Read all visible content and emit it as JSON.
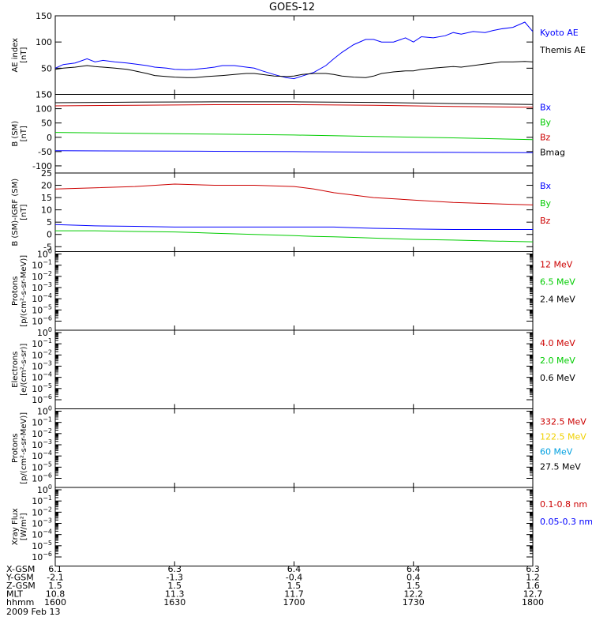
{
  "title": "GOES-12",
  "date_label": "2009 Feb 13",
  "chart_data": [
    {
      "type": "line",
      "id": "ae",
      "ylabel": [
        "AE index",
        "[nT]"
      ],
      "yscale": "linear",
      "ylim": [
        0,
        150
      ],
      "yticks": [
        0,
        50,
        100,
        150
      ],
      "x": [
        1600,
        1602,
        1605,
        1608,
        1610,
        1612,
        1615,
        1618,
        1620,
        1623,
        1625,
        1628,
        1630,
        1633,
        1635,
        1638,
        1640,
        1642,
        1645,
        1648,
        1650,
        1652,
        1655,
        1658,
        1700,
        1702,
        1705,
        1708,
        1710,
        1712,
        1715,
        1718,
        1720,
        1722,
        1725,
        1728,
        1730,
        1732,
        1735,
        1738,
        1740,
        1742,
        1745,
        1748,
        1750,
        1752,
        1755,
        1758,
        1800
      ],
      "series": [
        {
          "name": "Kyoto AE",
          "color": "#0000ff",
          "values": [
            50,
            57,
            60,
            68,
            62,
            65,
            62,
            60,
            58,
            55,
            52,
            50,
            48,
            47,
            48,
            50,
            52,
            55,
            55,
            52,
            50,
            45,
            38,
            32,
            30,
            35,
            42,
            55,
            68,
            80,
            95,
            105,
            105,
            100,
            100,
            108,
            100,
            110,
            108,
            112,
            118,
            115,
            120,
            118,
            122,
            125,
            128,
            138,
            120
          ]
        },
        {
          "name": "Themis AE",
          "color": "#000000",
          "values": [
            48,
            50,
            52,
            55,
            53,
            52,
            50,
            48,
            45,
            40,
            36,
            34,
            33,
            32,
            32,
            34,
            35,
            36,
            38,
            40,
            40,
            38,
            35,
            34,
            35,
            38,
            40,
            40,
            38,
            35,
            33,
            32,
            35,
            40,
            43,
            45,
            45,
            48,
            50,
            52,
            53,
            52,
            55,
            58,
            60,
            62,
            62,
            63,
            62
          ]
        }
      ]
    },
    {
      "type": "line",
      "id": "b_sm",
      "ylabel": [
        "B (SM)",
        "[nT]"
      ],
      "yscale": "linear",
      "ylim": [
        -125,
        150
      ],
      "yticks": [
        -100,
        -50,
        0,
        50,
        100,
        150
      ],
      "x": [
        1600,
        1620,
        1640,
        1700,
        1720,
        1740,
        1800
      ],
      "series": [
        {
          "name": "Bx",
          "color": "#0000ff",
          "values": [
            -47,
            -48,
            -49,
            -50,
            -52,
            -53,
            -54
          ]
        },
        {
          "name": "By",
          "color": "#00cc00",
          "values": [
            17,
            14,
            11,
            8,
            3,
            -2,
            -8
          ]
        },
        {
          "name": "Bz",
          "color": "#cc0000",
          "values": [
            110,
            112,
            114,
            114,
            112,
            108,
            105
          ]
        },
        {
          "name": "Bmag",
          "color": "#000000",
          "values": [
            121,
            123,
            124,
            124,
            122,
            118,
            115
          ]
        }
      ]
    },
    {
      "type": "line",
      "id": "b_igrf",
      "ylabel": [
        "B (SM)-IGRF (SM)",
        "[nT]"
      ],
      "yscale": "linear",
      "ylim": [
        -7,
        25
      ],
      "yticks": [
        -5,
        0,
        5,
        10,
        15,
        20,
        25
      ],
      "x": [
        1600,
        1610,
        1620,
        1630,
        1640,
        1650,
        1700,
        1705,
        1710,
        1715,
        1720,
        1730,
        1740,
        1750,
        1800
      ],
      "series": [
        {
          "name": "Bx",
          "color": "#0000ff",
          "values": [
            4,
            3.5,
            3.3,
            3,
            3,
            3,
            3,
            3,
            3,
            2.7,
            2.5,
            2.2,
            2,
            2,
            2
          ]
        },
        {
          "name": "By",
          "color": "#00cc00",
          "values": [
            1.5,
            1.5,
            1.2,
            1,
            0.5,
            0,
            -0.5,
            -0.8,
            -1,
            -1.2,
            -1.5,
            -2,
            -2.3,
            -2.7,
            -3
          ]
        },
        {
          "name": "Bz",
          "color": "#cc0000",
          "values": [
            18.5,
            19,
            19.5,
            20.5,
            20,
            20,
            19.5,
            18.5,
            17,
            16,
            15,
            14,
            13,
            12.5,
            12
          ]
        }
      ]
    },
    {
      "type": "line",
      "id": "protons_1",
      "ylabel": [
        "Protons",
        "[p/(cm²-s-sr-MeV)]"
      ],
      "yscale": "log",
      "ylim": [
        -6.6,
        0
      ],
      "yticks": [
        0,
        -1,
        -2,
        -3,
        -4,
        -5,
        -6
      ],
      "series": [
        {
          "name": "12 MeV",
          "color": "#cc0000",
          "values": []
        },
        {
          "name": "6.5 MeV",
          "color": "#00cc00",
          "values": []
        },
        {
          "name": "2.4 MeV",
          "color": "#000000",
          "values": []
        }
      ]
    },
    {
      "type": "line",
      "id": "electrons",
      "ylabel": [
        "Electrons",
        "[e/(cm²-s-sr)]"
      ],
      "yscale": "log",
      "ylim": [
        -6.6,
        0
      ],
      "yticks": [
        0,
        -1,
        -2,
        -3,
        -4,
        -5,
        -6
      ],
      "series": [
        {
          "name": "4.0 MeV",
          "color": "#cc0000",
          "values": []
        },
        {
          "name": "2.0 MeV",
          "color": "#00cc00",
          "values": []
        },
        {
          "name": "0.6 MeV",
          "color": "#000000",
          "values": []
        }
      ]
    },
    {
      "type": "line",
      "id": "protons_2",
      "ylabel": [
        "Protons",
        "[p/(cm²-s-sr-MeV)]"
      ],
      "yscale": "log",
      "ylim": [
        -6.6,
        0
      ],
      "yticks": [
        0,
        -1,
        -2,
        -3,
        -4,
        -5,
        -6
      ],
      "series": [
        {
          "name": "332.5 MeV",
          "color": "#cc0000",
          "values": []
        },
        {
          "name": "122.5 MeV",
          "color": "#f0d000",
          "values": []
        },
        {
          "name": "60 MeV",
          "color": "#00a0e0",
          "values": []
        },
        {
          "name": "27.5 MeV",
          "color": "#000000",
          "values": []
        }
      ]
    },
    {
      "type": "line",
      "id": "xray",
      "ylabel": [
        "Xray Flux",
        "[W/m²]"
      ],
      "yscale": "log",
      "ylim": [
        -6.6,
        0
      ],
      "yticks": [
        0,
        -1,
        -2,
        -3,
        -4,
        -5,
        -6
      ],
      "series": [
        {
          "name": "0.1-0.8 nm",
          "color": "#cc0000",
          "values": []
        },
        {
          "name": "0.05-0.3 nm",
          "color": "#0000ff",
          "values": []
        }
      ]
    }
  ],
  "x_axis": {
    "range": [
      1600,
      1800
    ],
    "ticks": [
      1600,
      1630,
      1700,
      1730,
      1800
    ],
    "rows": [
      {
        "name": "X-GSM",
        "values": [
          "6.1",
          "6.3",
          "6.4",
          "6.4",
          "6.3"
        ]
      },
      {
        "name": "Y-GSM",
        "values": [
          "-2.1",
          "-1.3",
          "-0.4",
          "0.4",
          "1.2"
        ]
      },
      {
        "name": "Z-GSM",
        "values": [
          "1.5",
          "1.5",
          "1.5",
          "1.5",
          "1.6"
        ]
      },
      {
        "name": "MLT",
        "values": [
          "10.8",
          "11.3",
          "11.7",
          "12.2",
          "12.7"
        ]
      },
      {
        "name": "hhmm",
        "values": [
          "1600",
          "1630",
          "1700",
          "1730",
          "1800"
        ]
      }
    ]
  }
}
